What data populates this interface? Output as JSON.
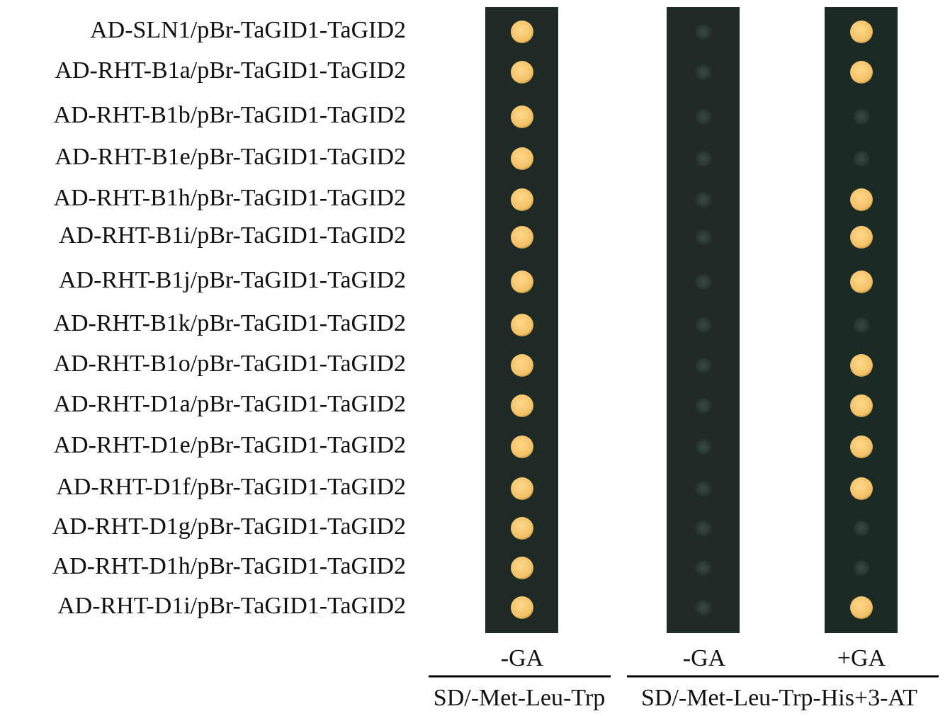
{
  "rows": [
    "AD-SLN1/pBr-TaGID1-TaGID2",
    "AD-RHT-B1a/pBr-TaGID1-TaGID2",
    "AD-RHT-B1b/pBr-TaGID1-TaGID2",
    "AD-RHT-B1e/pBr-TaGID1-TaGID2",
    "AD-RHT-B1h/pBr-TaGID1-TaGID2",
    "AD-RHT-B1i/pBr-TaGID1-TaGID2",
    "AD-RHT-B1j/pBr-TaGID1-TaGID2",
    "AD-RHT-B1k/pBr-TaGID1-TaGID2",
    "AD-RHT-B1o/pBr-TaGID1-TaGID2",
    "AD-RHT-D1a/pBr-TaGID1-TaGID2",
    "AD-RHT-D1e/pBr-TaGID1-TaGID2",
    "AD-RHT-D1f/pBr-TaGID1-TaGID2",
    "AD-RHT-D1g/pBr-TaGID1-TaGID2",
    "AD-RHT-D1h/pBr-TaGID1-TaGID2",
    "AD-RHT-D1i/pBr-TaGID1-TaGID2"
  ],
  "columns": [
    "-GA",
    "-GA",
    "+GA"
  ],
  "media": [
    "SD/-Met-Leu-Trp",
    "SD/-Met-Leu-Trp-His+3-AT"
  ]
}
